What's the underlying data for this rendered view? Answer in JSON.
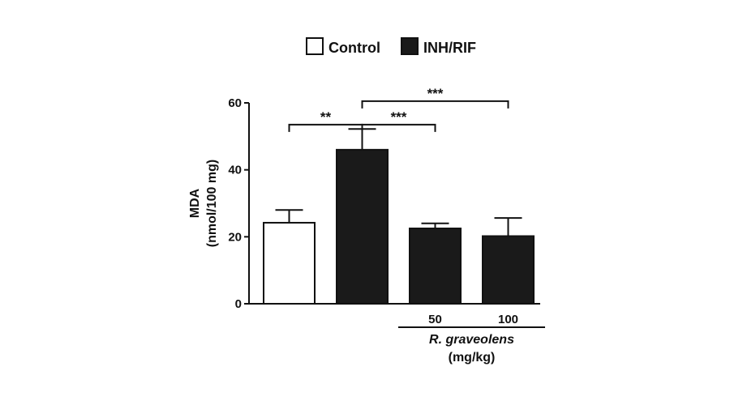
{
  "chart_data": {
    "type": "bar",
    "ylabel_line1": "MDA",
    "ylabel_line2": "(nmol/100 mg)",
    "ylim": [
      0,
      60
    ],
    "yticks": [
      "0",
      "20",
      "40",
      "60"
    ],
    "legend": {
      "placement": "top-center",
      "entries": [
        {
          "label": "Control",
          "fill": "#ffffff"
        },
        {
          "label": "INH/RIF",
          "fill": "#1a1a1a"
        }
      ]
    },
    "bars": [
      {
        "group": "Control",
        "value": 24.2,
        "error": 3.8,
        "fill": "#ffffff",
        "tick_label": ""
      },
      {
        "group": "INH/RIF",
        "value": 46.0,
        "error": 6.2,
        "fill": "#1a1a1a",
        "tick_label": ""
      },
      {
        "group": "INH/RIF",
        "value": 22.5,
        "error": 1.5,
        "fill": "#1a1a1a",
        "tick_label": "50"
      },
      {
        "group": "INH/RIF",
        "value": 20.2,
        "error": 5.4,
        "fill": "#1a1a1a",
        "tick_label": "100"
      }
    ],
    "xlabel_line1": "R. graveolens",
    "xlabel_line2": "(mg/kg)",
    "significance": [
      {
        "from": 0,
        "to": 1,
        "label": "**",
        "level": 53.5
      },
      {
        "from": 1,
        "to": 2,
        "label": "***",
        "level": 53.5
      },
      {
        "from": 1,
        "to": 3,
        "label": "***",
        "level": 60.5
      }
    ]
  }
}
